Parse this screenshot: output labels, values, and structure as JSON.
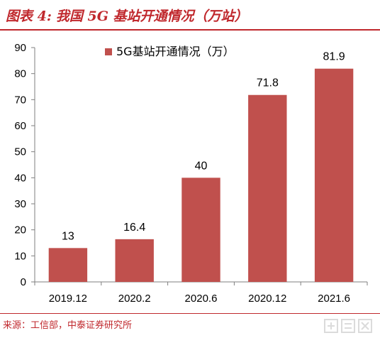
{
  "header": {
    "figure_number": "图表 4:",
    "title": "我国 5G 基站开通情况（万站）"
  },
  "footer": {
    "source": "来源：工信部，中泰证券研究所"
  },
  "colors": {
    "accent": "#c0282d",
    "bar": "#c0504d"
  },
  "chart_data": {
    "type": "bar",
    "categories": [
      "2019.12",
      "2020.2",
      "2020.6",
      "2020.12",
      "2021.6"
    ],
    "series": [
      {
        "name": "5G基站开通情况（万）",
        "values": [
          13,
          16.4,
          40,
          71.8,
          81.9
        ]
      }
    ],
    "data_labels": [
      "13",
      "16.4",
      "40",
      "71.8",
      "81.9"
    ],
    "ylim": [
      0,
      90
    ],
    "yticks": [
      0,
      10,
      20,
      30,
      40,
      50,
      60,
      70,
      80,
      90
    ],
    "grid": false,
    "legend_position": "top-center"
  }
}
